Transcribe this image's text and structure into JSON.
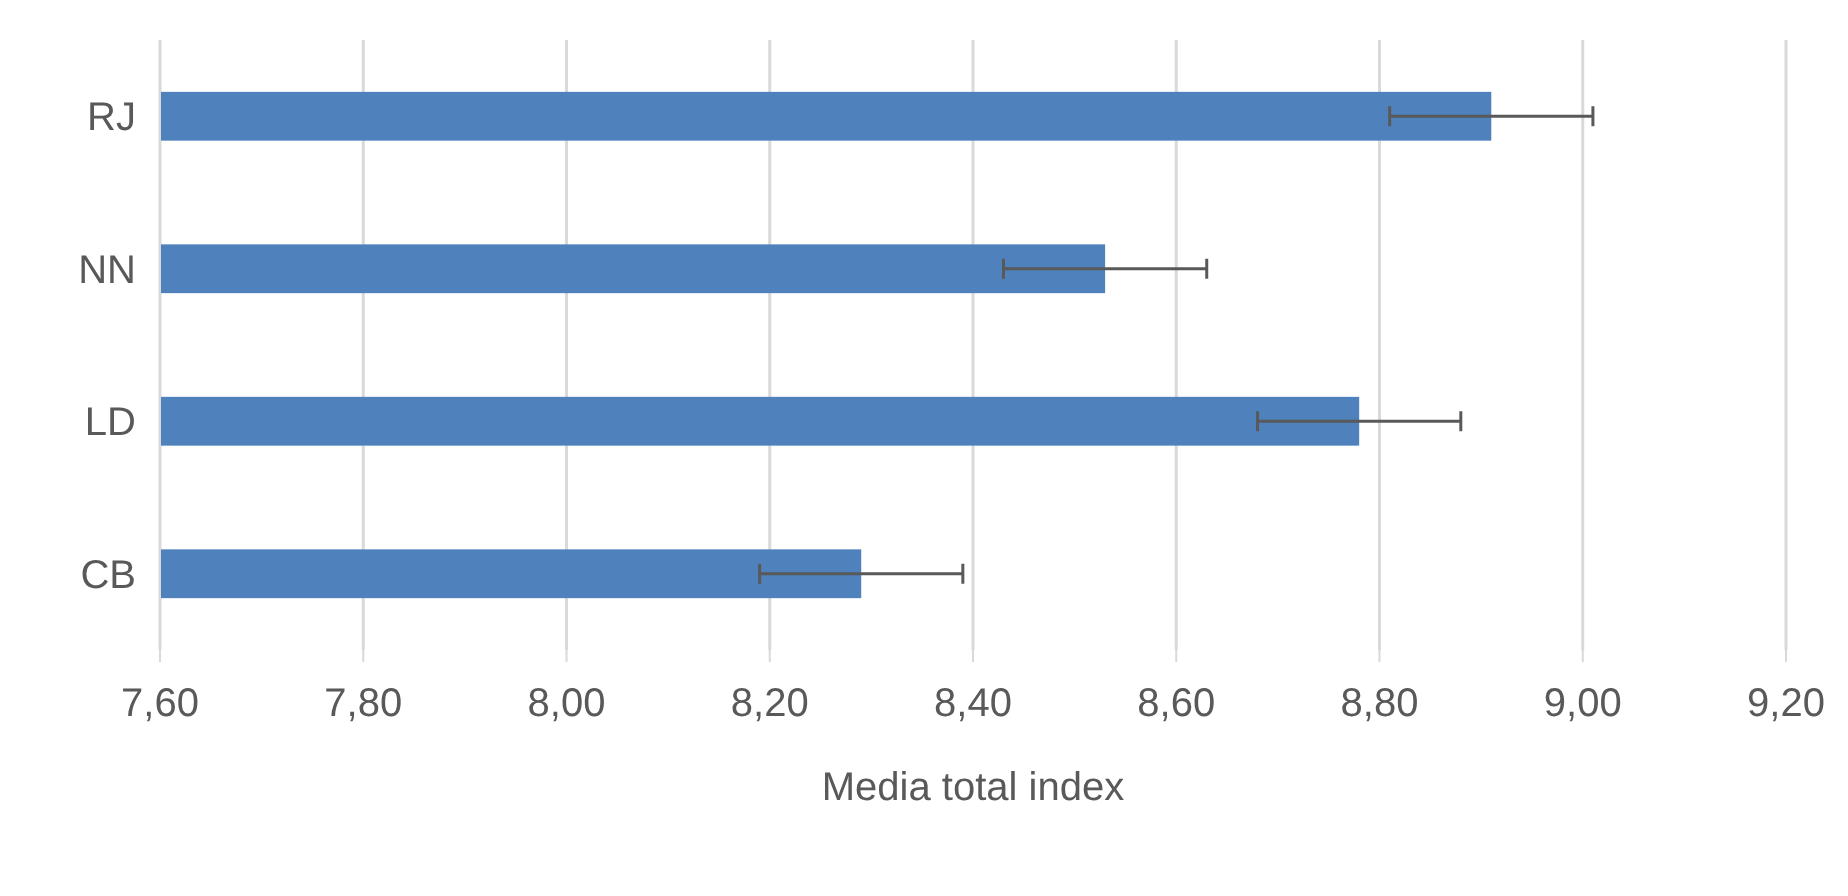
{
  "chart_data": {
    "type": "bar",
    "orientation": "horizontal",
    "categories": [
      "RJ",
      "NN",
      "LD",
      "CB"
    ],
    "values": [
      8.91,
      8.53,
      8.78,
      8.29
    ],
    "errors": [
      0.1,
      0.1,
      0.1,
      0.1
    ],
    "color": "#4f81bd",
    "xlabel": "Media total index",
    "xlim": [
      7.6,
      9.2
    ],
    "xticks": [
      {
        "value": 7.6,
        "label": "7,60"
      },
      {
        "value": 7.8,
        "label": "7,80"
      },
      {
        "value": 8.0,
        "label": "8,00"
      },
      {
        "value": 8.2,
        "label": "8,20"
      },
      {
        "value": 8.4,
        "label": "8,40"
      },
      {
        "value": 8.6,
        "label": "8,60"
      },
      {
        "value": 8.8,
        "label": "8,80"
      },
      {
        "value": 9.0,
        "label": "9,00"
      },
      {
        "value": 9.2,
        "label": "9,20"
      }
    ],
    "grid": "x"
  }
}
